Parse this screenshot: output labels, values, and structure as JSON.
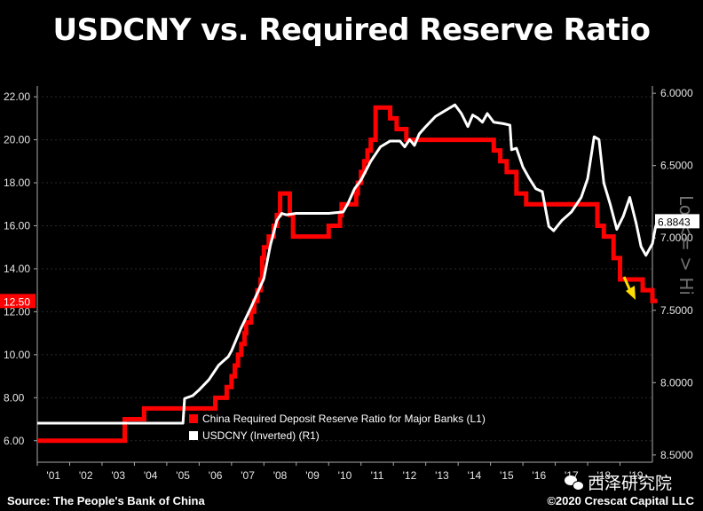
{
  "colors": {
    "background": "#000000",
    "rrr_line": "#ff0000",
    "usdcny_line": "#ffffff",
    "arrow": "#ffdd00",
    "current_value_label_bg": "#ffffff"
  },
  "footer": {
    "source": "Source: The People's Bank of China",
    "copyright": "©2020 Crescat Capital LLC",
    "watermark": "西泽研究院",
    "watermark_icon": "wechat-icon"
  },
  "chart_data": {
    "type": "line",
    "title": "USDCNY vs. Required Reserve Ratio",
    "x_tick_labels": [
      "'01",
      "'02",
      "'03",
      "'04",
      "'05",
      "'06",
      "'07",
      "'08",
      "'09",
      "'10",
      "'11",
      "'12",
      "'13",
      "'14",
      "'15",
      "'16",
      "'17",
      "'18",
      "'19"
    ],
    "xlim": [
      2001.0,
      2020.0
    ],
    "left_axis": {
      "ticks": [
        "22.00",
        "20.00",
        "18.00",
        "16.00",
        "14.00",
        "12.00",
        "10.00",
        "8.00",
        "6.00"
      ],
      "ylim": [
        5.0,
        22.5
      ]
    },
    "right_axis": {
      "ticks": [
        "6.0000",
        "6.5000",
        "7.0000",
        "7.5000",
        "8.0000",
        "8.5000"
      ],
      "ylim": [
        5.95,
        8.55
      ],
      "inverted": true,
      "side_label": "Lo <= > Hi"
    },
    "legend": [
      {
        "label": "China Required Deposit Reserve Ratio for Major Banks (L1)",
        "color": "#ff0000"
      },
      {
        "label": "USDCNY (Inverted) (R1)",
        "color": "#ffffff"
      }
    ],
    "legend_position": "bottom-center",
    "current_labels": {
      "rrr": "12.50",
      "usdcny": "6.8843"
    },
    "series": [
      {
        "name": "China Required Deposit Reserve Ratio for Major Banks (L1)",
        "axis": "left",
        "step": true,
        "x": [
          2001.0,
          2003.7,
          2004.3,
          2006.5,
          2006.85,
          2007.0,
          2007.1,
          2007.2,
          2007.3,
          2007.4,
          2007.45,
          2007.6,
          2007.7,
          2007.8,
          2007.9,
          2007.95,
          2008.0,
          2008.15,
          2008.3,
          2008.4,
          2008.5,
          2008.8,
          2008.9,
          2009.0,
          2010.0,
          2010.35,
          2010.4,
          2010.85,
          2010.9,
          2011.0,
          2011.1,
          2011.2,
          2011.3,
          2011.45,
          2011.9,
          2012.1,
          2012.4,
          2015.1,
          2015.3,
          2015.5,
          2015.8,
          2016.1,
          2018.3,
          2018.5,
          2018.8,
          2019.0,
          2019.7,
          2020.0,
          2020.15
        ],
        "values": [
          6.0,
          7.0,
          7.5,
          8.0,
          8.5,
          9.0,
          9.5,
          10.0,
          10.5,
          11.0,
          11.5,
          12.0,
          12.5,
          13.0,
          13.5,
          14.5,
          15.0,
          15.5,
          16.0,
          16.5,
          17.5,
          16.5,
          15.5,
          15.5,
          16.0,
          16.5,
          17.0,
          17.5,
          18.0,
          18.5,
          19.0,
          19.5,
          20.0,
          21.5,
          21.0,
          20.5,
          20.0,
          19.5,
          19.0,
          18.5,
          17.5,
          17.0,
          16.0,
          15.5,
          14.5,
          13.5,
          13.0,
          12.5,
          12.5
        ]
      },
      {
        "name": "USDCNY (Inverted) (R1)",
        "axis": "right",
        "x": [
          2001.0,
          2005.5,
          2005.55,
          2005.8,
          2006.0,
          2006.3,
          2006.6,
          2006.9,
          2007.0,
          2007.3,
          2007.6,
          2007.9,
          2008.0,
          2008.2,
          2008.4,
          2008.55,
          2008.7,
          2009.0,
          2009.5,
          2010.0,
          2010.45,
          2010.6,
          2010.8,
          2011.0,
          2011.3,
          2011.6,
          2011.9,
          2012.2,
          2012.35,
          2012.5,
          2012.65,
          2012.8,
          2013.0,
          2013.3,
          2013.6,
          2013.9,
          2014.1,
          2014.3,
          2014.45,
          2014.6,
          2014.75,
          2014.9,
          2015.1,
          2015.4,
          2015.6,
          2015.65,
          2015.8,
          2016.0,
          2016.2,
          2016.4,
          2016.6,
          2016.8,
          2016.95,
          2017.2,
          2017.5,
          2017.8,
          2018.0,
          2018.2,
          2018.35,
          2018.5,
          2018.7,
          2018.9,
          2019.1,
          2019.3,
          2019.5,
          2019.65,
          2019.8,
          2020.0,
          2020.1,
          2020.15
        ],
        "values": [
          8.28,
          8.28,
          8.11,
          8.09,
          8.05,
          7.98,
          7.88,
          7.82,
          7.78,
          7.62,
          7.48,
          7.33,
          7.28,
          7.05,
          6.88,
          6.83,
          6.84,
          6.83,
          6.83,
          6.83,
          6.82,
          6.76,
          6.66,
          6.6,
          6.47,
          6.37,
          6.33,
          6.33,
          6.37,
          6.32,
          6.36,
          6.28,
          6.23,
          6.16,
          6.12,
          6.08,
          6.14,
          6.23,
          6.15,
          6.17,
          6.2,
          6.14,
          6.2,
          6.21,
          6.22,
          6.39,
          6.38,
          6.51,
          6.59,
          6.66,
          6.68,
          6.92,
          6.95,
          6.88,
          6.82,
          6.72,
          6.59,
          6.3,
          6.32,
          6.62,
          6.77,
          6.94,
          6.85,
          6.72,
          6.9,
          7.06,
          7.12,
          7.04,
          6.92,
          6.89
        ]
      }
    ]
  }
}
